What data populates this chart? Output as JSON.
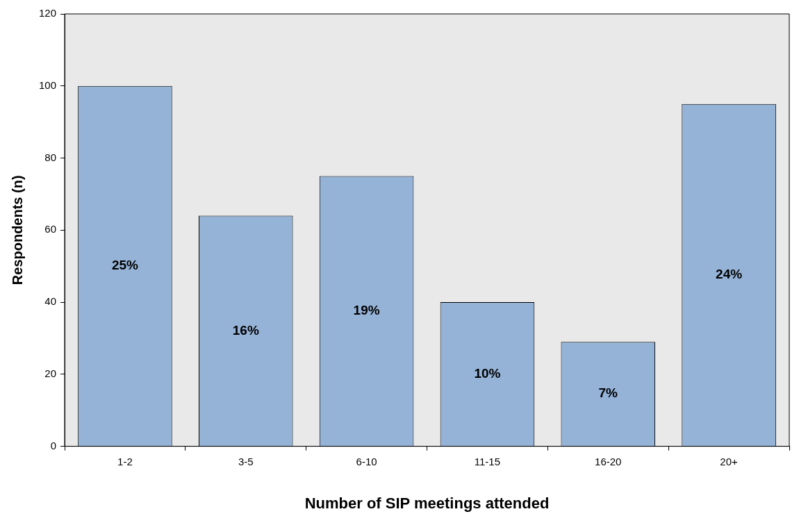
{
  "chart_data": {
    "type": "bar",
    "xlabel": "Number of SIP meetings attended",
    "ylabel": "Respondents (n)",
    "categories": [
      "1-2",
      "3-5",
      "6-10",
      "11-15",
      "16-20",
      "20+"
    ],
    "values": [
      100,
      64,
      75,
      40,
      29,
      95
    ],
    "annotations": [
      "25%",
      "16%",
      "19%",
      "10%",
      "7%",
      "24%"
    ],
    "color": "#95b3d7",
    "ylim": [
      0,
      120
    ],
    "yticks": [
      0,
      20,
      40,
      60,
      80,
      100,
      120
    ]
  }
}
